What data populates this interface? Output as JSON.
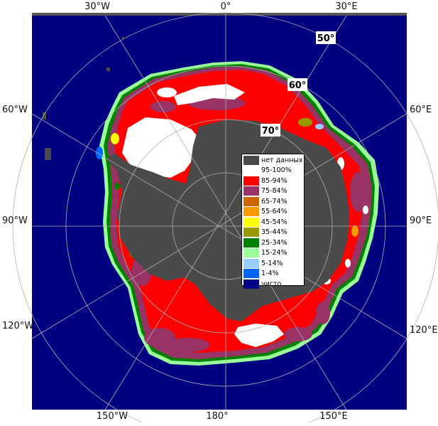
{
  "map": {
    "longitude_labels": {
      "top": [
        "30°W",
        "0°",
        "30°E"
      ],
      "left": [
        "60°W",
        "90°W",
        "120°W"
      ],
      "right": [
        "60°E",
        "90°E",
        "120°E"
      ],
      "bottom": [
        "150°W",
        "180°",
        "150°E"
      ]
    },
    "latitude_labels": [
      "50°",
      "60°",
      "70°"
    ],
    "colors": {
      "open_water": "#000080",
      "no_data": "#4a4a4a",
      "frame": "#555555",
      "graticule": "#b0b0b0"
    }
  },
  "legend": {
    "items": [
      {
        "label": "нет данных",
        "color": "#4a4a4a"
      },
      {
        "label": "95-100%",
        "color": "#ffffff"
      },
      {
        "label": "85-94%",
        "color": "#ff0000"
      },
      {
        "label": "75-84%",
        "color": "#993366"
      },
      {
        "label": "65-74%",
        "color": "#cc6600"
      },
      {
        "label": "55-64%",
        "color": "#ff9900"
      },
      {
        "label": "45-54%",
        "color": "#ffff00"
      },
      {
        "label": "35-44%",
        "color": "#999900"
      },
      {
        "label": "25-34%",
        "color": "#008000"
      },
      {
        "label": "15-24%",
        "color": "#99ff99"
      },
      {
        "label": "5-14%",
        "color": "#99ccff"
      },
      {
        "label": "1-4%",
        "color": "#0066ff"
      },
      {
        "label": "чисто",
        "color": "#000080"
      }
    ]
  }
}
